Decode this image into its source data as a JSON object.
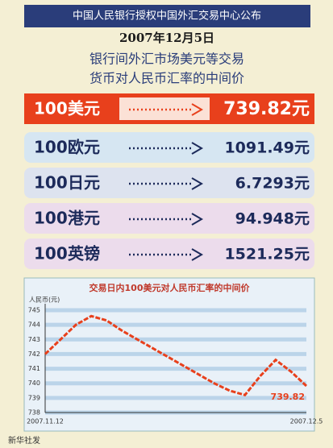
{
  "header": {
    "title": "中国人民银行授权中国外汇交易中心公布",
    "date": "2007年12月5日",
    "subtitle_lines": [
      "银行间外汇市场美元等交易",
      "货币对人民币汇率的中间价"
    ]
  },
  "rates": [
    {
      "amount": "100",
      "currency": "美元",
      "rate": "739.82元"
    },
    {
      "amount": "100",
      "currency": "欧元",
      "rate": "1091.49元"
    },
    {
      "amount": "100",
      "currency": "日元",
      "rate": "6.7293元"
    },
    {
      "amount": "100",
      "currency": "港元",
      "rate": "94.948元"
    },
    {
      "amount": "100",
      "currency": "英镑",
      "rate": "1521.25元"
    }
  ],
  "chart_data": {
    "type": "line",
    "title": "交易日内100美元对人民币汇率的中间价",
    "y_label": "人民币(元)",
    "categories": [
      "2007.11.12",
      null,
      null,
      null,
      null,
      null,
      null,
      null,
      null,
      null,
      null,
      null,
      null,
      null,
      null,
      null,
      null,
      "2007.12.5"
    ],
    "values": [
      742.0,
      743.0,
      744.0,
      744.6,
      744.3,
      743.6,
      743.0,
      742.4,
      741.8,
      741.2,
      740.6,
      740.0,
      739.5,
      739.2,
      740.5,
      741.6,
      740.8,
      739.82
    ],
    "color": "#e8401c",
    "annotation": "739.82",
    "ylim": [
      738,
      745
    ],
    "yticks": [
      738,
      739,
      740,
      741,
      742,
      743,
      744,
      745
    ],
    "grid": true
  },
  "footer": "新华社发"
}
